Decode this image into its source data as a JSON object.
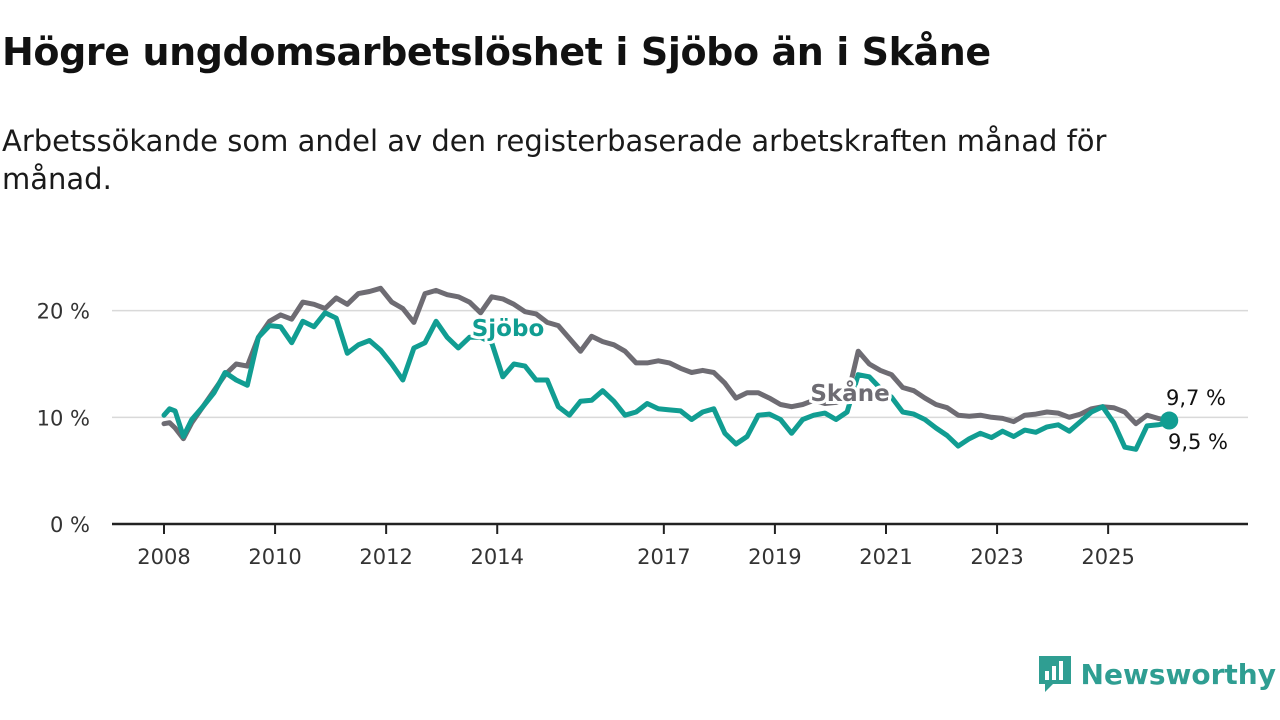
{
  "title": "Högre ungdomsarbetslöshet i Sjöbo än i Skåne",
  "subtitle": "Arbetssökande som andel av den registerbaserade arbetskraften månad för månad.",
  "brand": {
    "name": "Newsworthy",
    "icon": "bar-chart-speech-icon",
    "color": "#2f9e92"
  },
  "chart_data": {
    "type": "line",
    "title": "Högre ungdomsarbetslöshet i Sjöbo än i Skåne",
    "xlabel": "",
    "ylabel": "",
    "ylim": [
      0,
      22
    ],
    "xlim": [
      2008.0,
      2026.6
    ],
    "grid": true,
    "x_ticks": [
      2008,
      2010,
      2012,
      2014,
      2017,
      2019,
      2021,
      2023,
      2025
    ],
    "x_tick_labels": [
      "2008",
      "2010",
      "2012",
      "2014",
      "2017",
      "2019",
      "2021",
      "2023",
      "2025"
    ],
    "y_ticks": [
      0,
      10,
      20
    ],
    "y_tick_labels": [
      "0 %",
      "10 %",
      "20 %"
    ],
    "end_labels": {
      "skane": "9,7 %",
      "sjobo": "9,5 %"
    },
    "series": [
      {
        "name": "Skåne",
        "color": "#6e6c73",
        "x": [
          2008.0,
          2008.1,
          2008.2,
          2008.35,
          2008.5,
          2008.7,
          2008.9,
          2009.1,
          2009.3,
          2009.5,
          2009.7,
          2009.9,
          2010.1,
          2010.3,
          2010.5,
          2010.7,
          2010.9,
          2011.1,
          2011.3,
          2011.5,
          2011.7,
          2011.9,
          2012.1,
          2012.3,
          2012.5,
          2012.7,
          2012.9,
          2013.1,
          2013.3,
          2013.5,
          2013.7,
          2013.9,
          2014.1,
          2014.3,
          2014.5,
          2014.7,
          2014.9,
          2015.1,
          2015.3,
          2015.5,
          2015.7,
          2015.9,
          2016.1,
          2016.3,
          2016.5,
          2016.7,
          2016.9,
          2017.1,
          2017.3,
          2017.5,
          2017.7,
          2017.9,
          2018.1,
          2018.3,
          2018.5,
          2018.7,
          2018.9,
          2019.1,
          2019.3,
          2019.5,
          2019.7,
          2019.9,
          2020.1,
          2020.3,
          2020.5,
          2020.7,
          2020.9,
          2021.1,
          2021.3,
          2021.5,
          2021.7,
          2021.9,
          2022.1,
          2022.3,
          2022.5,
          2022.7,
          2022.9,
          2023.1,
          2023.3,
          2023.5,
          2023.7,
          2023.9,
          2024.1,
          2024.3,
          2024.5,
          2024.7,
          2024.9,
          2025.1,
          2025.3,
          2025.5,
          2025.7,
          2025.9,
          2026.1
        ],
        "values": [
          9.4,
          9.5,
          9.0,
          8.0,
          9.5,
          11.0,
          12.5,
          14.0,
          15.0,
          14.8,
          17.5,
          19.0,
          19.6,
          19.2,
          20.8,
          20.6,
          20.2,
          21.2,
          20.6,
          21.6,
          21.8,
          22.1,
          20.8,
          20.2,
          18.9,
          21.6,
          21.9,
          21.5,
          21.3,
          20.8,
          19.8,
          21.3,
          21.1,
          20.6,
          19.9,
          19.7,
          18.9,
          18.6,
          17.4,
          16.2,
          17.6,
          17.1,
          16.8,
          16.2,
          15.1,
          15.1,
          15.3,
          15.1,
          14.6,
          14.2,
          14.4,
          14.2,
          13.2,
          11.8,
          12.3,
          12.3,
          11.8,
          11.2,
          11.0,
          11.2,
          11.6,
          11.3,
          11.4,
          11.8,
          16.2,
          15.0,
          14.4,
          14.0,
          12.8,
          12.5,
          11.8,
          11.2,
          10.9,
          10.2,
          10.1,
          10.2,
          10.0,
          9.9,
          9.6,
          10.2,
          10.3,
          10.5,
          10.4,
          10.0,
          10.3,
          10.8,
          11.0,
          10.9,
          10.5,
          9.4,
          10.2,
          9.9,
          9.7
        ]
      },
      {
        "name": "Sjöbo",
        "color": "#119d92",
        "x": [
          2008.0,
          2008.1,
          2008.2,
          2008.35,
          2008.5,
          2008.7,
          2008.9,
          2009.1,
          2009.3,
          2009.5,
          2009.7,
          2009.9,
          2010.1,
          2010.3,
          2010.5,
          2010.7,
          2010.9,
          2011.1,
          2011.3,
          2011.5,
          2011.7,
          2011.9,
          2012.1,
          2012.3,
          2012.5,
          2012.7,
          2012.9,
          2013.1,
          2013.3,
          2013.5,
          2013.7,
          2013.9,
          2014.1,
          2014.3,
          2014.5,
          2014.7,
          2014.9,
          2015.1,
          2015.3,
          2015.5,
          2015.7,
          2015.9,
          2016.1,
          2016.3,
          2016.5,
          2016.7,
          2016.9,
          2017.1,
          2017.3,
          2017.5,
          2017.7,
          2017.9,
          2018.1,
          2018.3,
          2018.5,
          2018.7,
          2018.9,
          2019.1,
          2019.3,
          2019.5,
          2019.7,
          2019.9,
          2020.1,
          2020.3,
          2020.5,
          2020.7,
          2020.9,
          2021.1,
          2021.3,
          2021.5,
          2021.7,
          2021.9,
          2022.1,
          2022.3,
          2022.5,
          2022.7,
          2022.9,
          2023.1,
          2023.3,
          2023.5,
          2023.7,
          2023.9,
          2024.1,
          2024.3,
          2024.5,
          2024.7,
          2024.9,
          2025.1,
          2025.3,
          2025.5,
          2025.7,
          2025.9,
          2026.1
        ],
        "values": [
          10.2,
          10.8,
          10.6,
          8.2,
          9.8,
          11.0,
          12.3,
          14.2,
          13.5,
          13.0,
          17.5,
          18.6,
          18.5,
          17.0,
          19.0,
          18.5,
          19.8,
          19.3,
          16.0,
          16.8,
          17.2,
          16.3,
          15.0,
          13.5,
          16.5,
          17.0,
          19.0,
          17.5,
          16.5,
          17.5,
          17.5,
          17.0,
          13.8,
          15.0,
          14.8,
          13.5,
          13.5,
          11.0,
          10.2,
          11.5,
          11.6,
          12.5,
          11.5,
          10.2,
          10.5,
          11.3,
          10.8,
          10.7,
          10.6,
          9.8,
          10.5,
          10.8,
          8.5,
          7.5,
          8.2,
          10.2,
          10.3,
          9.8,
          8.5,
          9.8,
          10.2,
          10.4,
          9.8,
          10.5,
          14.0,
          13.8,
          12.7,
          11.9,
          10.5,
          10.3,
          9.8,
          9.0,
          8.3,
          7.3,
          8.0,
          8.5,
          8.1,
          8.7,
          8.2,
          8.8,
          8.6,
          9.1,
          9.3,
          8.7,
          9.6,
          10.5,
          11.0,
          9.5,
          7.2,
          7.0,
          9.2,
          9.3,
          9.5
        ]
      }
    ]
  }
}
